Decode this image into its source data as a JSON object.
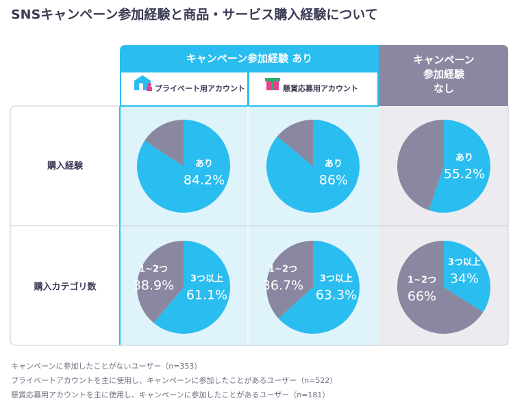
{
  "title": "SNSキャンペーン参加経験と商品・サービス購入経験について",
  "headers": {
    "yes": "キャンペーン参加経験 あり",
    "private": "プライベート用アカウント",
    "prize": "懸賞応募用アカウント",
    "no": [
      "キャンペーン",
      "参加経験",
      "なし"
    ]
  },
  "rows": [
    "購入経験",
    "購入カテゴリ数"
  ],
  "footnotes": [
    "キャンペーンに参加したことがないユーザー（n=353）",
    "プライベートアカウントを主に使用し、キャンペーンに参加したことがあるユーザー（n=522）",
    "懸賞応募用アカウントを主に使用し、キャンペーンに参加したことがあるユーザー（n=181）"
  ],
  "chart_data": [
    {
      "type": "pie",
      "categories": [
        "あり",
        null
      ],
      "values": [
        84.2,
        15.8
      ],
      "value_labels": [
        "84.2%",
        null
      ],
      "colors": [
        "#29bdf0",
        "#8a88a0"
      ]
    },
    {
      "type": "pie",
      "categories": [
        "あり",
        null
      ],
      "values": [
        86,
        14
      ],
      "value_labels": [
        "86%",
        null
      ],
      "colors": [
        "#29bdf0",
        "#8a88a0"
      ]
    },
    {
      "type": "pie",
      "categories": [
        "あり",
        null
      ],
      "values": [
        55.2,
        44.8
      ],
      "value_labels": [
        "55.2%",
        null
      ],
      "colors": [
        "#29bdf0",
        "#8a88a0"
      ]
    },
    {
      "type": "pie",
      "categories": [
        "3つ以上",
        "1~2つ"
      ],
      "values": [
        61.1,
        38.9
      ],
      "value_labels": [
        "61.1%",
        "38.9%"
      ],
      "colors": [
        "#29bdf0",
        "#8a88a0"
      ]
    },
    {
      "type": "pie",
      "categories": [
        "3つ以上",
        "1~2つ"
      ],
      "values": [
        63.3,
        36.7
      ],
      "value_labels": [
        "63.3%",
        "36.7%"
      ],
      "colors": [
        "#29bdf0",
        "#8a88a0"
      ]
    },
    {
      "type": "pie",
      "categories": [
        "3つ以上",
        "1~2つ"
      ],
      "values": [
        34,
        66
      ],
      "value_labels": [
        "34%",
        "66%"
      ],
      "colors": [
        "#29bdf0",
        "#8a88a0"
      ]
    }
  ]
}
